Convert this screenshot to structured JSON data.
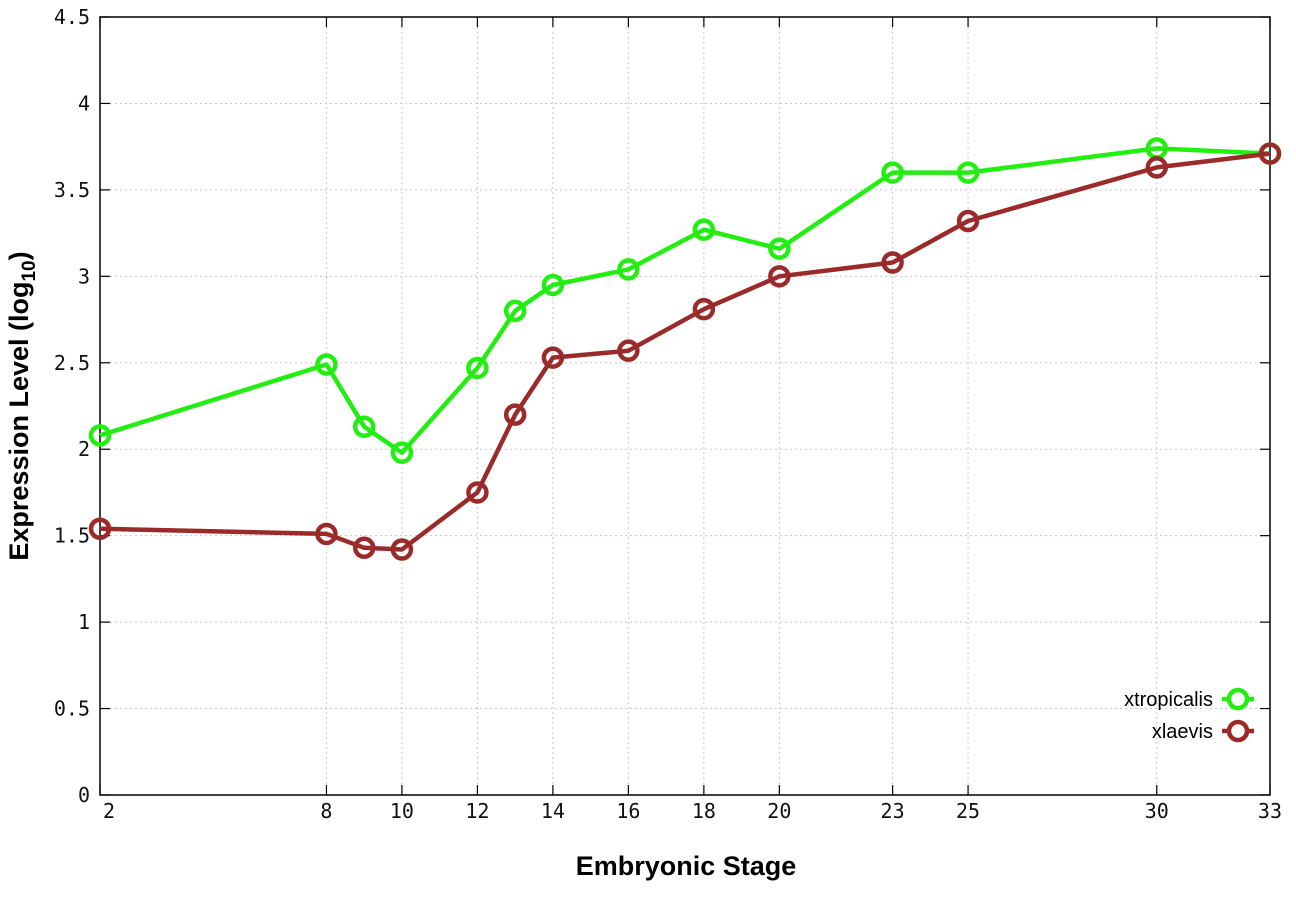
{
  "chart_data": {
    "type": "line",
    "xlabel": "Embryonic Stage",
    "ylabel": {
      "text": "Expression Level (log",
      "subscript": "10",
      "suffix": ")"
    },
    "x_ticks": [
      "2",
      "8",
      "10",
      "12",
      "14",
      "16",
      "18",
      "20",
      "23",
      "25",
      "30",
      "33"
    ],
    "y_ticks": [
      "0",
      "0.5",
      "1",
      "1.5",
      "2",
      "2.5",
      "3",
      "3.5",
      "4",
      "4.5"
    ],
    "ylim": [
      0,
      4.5
    ],
    "grid": true,
    "legend_position": "bottom-right",
    "x": [
      2,
      8,
      9,
      10,
      12,
      13,
      14,
      16,
      18,
      20,
      23,
      25,
      30,
      33
    ],
    "series": [
      {
        "name": "xtropicalis",
        "color": "#22ee11",
        "values": [
          2.08,
          2.49,
          2.13,
          1.98,
          2.47,
          2.8,
          2.95,
          3.04,
          3.27,
          3.16,
          3.6,
          3.6,
          3.74,
          3.71
        ]
      },
      {
        "name": "xlaevis",
        "color": "#9b2a2a",
        "values": [
          1.54,
          1.51,
          1.43,
          1.42,
          1.75,
          2.2,
          2.53,
          2.57,
          2.81,
          3.0,
          3.08,
          3.32,
          3.63,
          3.71
        ]
      }
    ]
  }
}
